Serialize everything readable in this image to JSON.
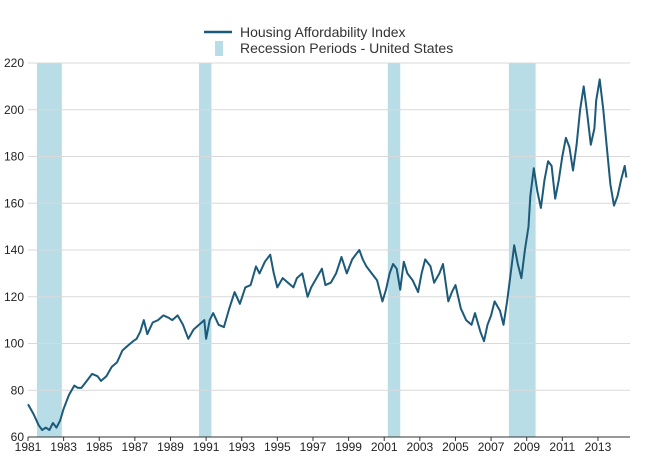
{
  "chart_data": {
    "type": "line",
    "title": "",
    "xlabel": "",
    "ylabel": "",
    "xlim": [
      1981,
      2014.8
    ],
    "ylim": [
      60,
      220
    ],
    "x_ticks": [
      "1981",
      "1983",
      "1985",
      "1987",
      "1989",
      "1991",
      "1993",
      "1995",
      "1997",
      "1999",
      "2001",
      "2003",
      "2005",
      "2007",
      "2009",
      "2011",
      "2013"
    ],
    "y_ticks": [
      "60",
      "80",
      "100",
      "120",
      "140",
      "160",
      "180",
      "200",
      "220"
    ],
    "grid": {
      "y": true,
      "x": false
    },
    "legend": {
      "placement": "top-center",
      "entries": [
        {
          "label": "Housing Affordability Index",
          "kind": "line"
        },
        {
          "label": "Recession Periods - United States",
          "kind": "band"
        }
      ]
    },
    "colors": {
      "line": "#1c5a7a",
      "recession": "#b9dde6",
      "grid": "#d9d9d9",
      "axis": "#333333"
    },
    "recessions": [
      {
        "start": 1981.5,
        "end": 1982.9
      },
      {
        "start": 1990.6,
        "end": 1991.3
      },
      {
        "start": 2001.2,
        "end": 2001.9
      },
      {
        "start": 2008.0,
        "end": 2009.5
      }
    ],
    "series": [
      {
        "name": "Housing Affordability Index",
        "points": [
          [
            1981.0,
            74
          ],
          [
            1981.3,
            70
          ],
          [
            1981.6,
            65
          ],
          [
            1981.8,
            63
          ],
          [
            1982.0,
            64
          ],
          [
            1982.2,
            63
          ],
          [
            1982.4,
            66
          ],
          [
            1982.6,
            64
          ],
          [
            1982.8,
            67
          ],
          [
            1983.0,
            72
          ],
          [
            1983.3,
            78
          ],
          [
            1983.6,
            82
          ],
          [
            1983.8,
            81
          ],
          [
            1984.0,
            81
          ],
          [
            1984.3,
            84
          ],
          [
            1984.6,
            87
          ],
          [
            1984.9,
            86
          ],
          [
            1985.1,
            84
          ],
          [
            1985.4,
            86
          ],
          [
            1985.7,
            90
          ],
          [
            1986.0,
            92
          ],
          [
            1986.3,
            97
          ],
          [
            1986.6,
            99
          ],
          [
            1986.9,
            101
          ],
          [
            1987.1,
            102
          ],
          [
            1987.3,
            105
          ],
          [
            1987.5,
            110
          ],
          [
            1987.7,
            104
          ],
          [
            1988.0,
            109
          ],
          [
            1988.3,
            110
          ],
          [
            1988.6,
            112
          ],
          [
            1988.9,
            111
          ],
          [
            1989.1,
            110
          ],
          [
            1989.4,
            112
          ],
          [
            1989.7,
            108
          ],
          [
            1990.0,
            102
          ],
          [
            1990.3,
            106
          ],
          [
            1990.6,
            108
          ],
          [
            1990.9,
            110
          ],
          [
            1991.0,
            102
          ],
          [
            1991.2,
            110
          ],
          [
            1991.4,
            113
          ],
          [
            1991.7,
            108
          ],
          [
            1992.0,
            107
          ],
          [
            1992.3,
            115
          ],
          [
            1992.6,
            122
          ],
          [
            1992.9,
            117
          ],
          [
            1993.2,
            124
          ],
          [
            1993.5,
            125
          ],
          [
            1993.8,
            133
          ],
          [
            1994.0,
            130
          ],
          [
            1994.3,
            135
          ],
          [
            1994.6,
            138
          ],
          [
            1994.8,
            130
          ],
          [
            1995.0,
            124
          ],
          [
            1995.3,
            128
          ],
          [
            1995.6,
            126
          ],
          [
            1995.9,
            124
          ],
          [
            1996.1,
            128
          ],
          [
            1996.4,
            130
          ],
          [
            1996.7,
            120
          ],
          [
            1996.9,
            124
          ],
          [
            1997.2,
            128
          ],
          [
            1997.5,
            132
          ],
          [
            1997.7,
            125
          ],
          [
            1998.0,
            126
          ],
          [
            1998.3,
            130
          ],
          [
            1998.6,
            137
          ],
          [
            1998.9,
            130
          ],
          [
            1999.2,
            136
          ],
          [
            1999.4,
            138
          ],
          [
            1999.6,
            140
          ],
          [
            1999.8,
            136
          ],
          [
            2000.0,
            133
          ],
          [
            2000.3,
            130
          ],
          [
            2000.6,
            127
          ],
          [
            2000.9,
            118
          ],
          [
            2001.1,
            123
          ],
          [
            2001.3,
            130
          ],
          [
            2001.5,
            134
          ],
          [
            2001.7,
            132
          ],
          [
            2001.9,
            123
          ],
          [
            2002.1,
            135
          ],
          [
            2002.3,
            130
          ],
          [
            2002.6,
            127
          ],
          [
            2002.9,
            122
          ],
          [
            2003.1,
            130
          ],
          [
            2003.3,
            136
          ],
          [
            2003.6,
            133
          ],
          [
            2003.8,
            126
          ],
          [
            2004.1,
            130
          ],
          [
            2004.3,
            134
          ],
          [
            2004.6,
            118
          ],
          [
            2004.8,
            122
          ],
          [
            2005.0,
            125
          ],
          [
            2005.3,
            115
          ],
          [
            2005.6,
            110
          ],
          [
            2005.9,
            108
          ],
          [
            2006.1,
            113
          ],
          [
            2006.4,
            105
          ],
          [
            2006.6,
            101
          ],
          [
            2006.8,
            108
          ],
          [
            2007.0,
            112
          ],
          [
            2007.2,
            118
          ],
          [
            2007.5,
            114
          ],
          [
            2007.7,
            108
          ],
          [
            2007.9,
            118
          ],
          [
            2008.1,
            130
          ],
          [
            2008.3,
            142
          ],
          [
            2008.5,
            134
          ],
          [
            2008.7,
            128
          ],
          [
            2008.9,
            140
          ],
          [
            2009.1,
            150
          ],
          [
            2009.2,
            163
          ],
          [
            2009.4,
            175
          ],
          [
            2009.6,
            165
          ],
          [
            2009.8,
            158
          ],
          [
            2010.0,
            170
          ],
          [
            2010.2,
            178
          ],
          [
            2010.4,
            176
          ],
          [
            2010.6,
            162
          ],
          [
            2010.8,
            170
          ],
          [
            2011.0,
            180
          ],
          [
            2011.2,
            188
          ],
          [
            2011.4,
            184
          ],
          [
            2011.6,
            174
          ],
          [
            2011.8,
            185
          ],
          [
            2012.0,
            200
          ],
          [
            2012.2,
            210
          ],
          [
            2012.4,
            198
          ],
          [
            2012.6,
            185
          ],
          [
            2012.8,
            192
          ],
          [
            2012.9,
            204
          ],
          [
            2013.1,
            213
          ],
          [
            2013.3,
            200
          ],
          [
            2013.5,
            184
          ],
          [
            2013.7,
            168
          ],
          [
            2013.9,
            159
          ],
          [
            2014.1,
            163
          ],
          [
            2014.3,
            170
          ],
          [
            2014.5,
            176
          ],
          [
            2014.6,
            171
          ]
        ]
      }
    ]
  }
}
